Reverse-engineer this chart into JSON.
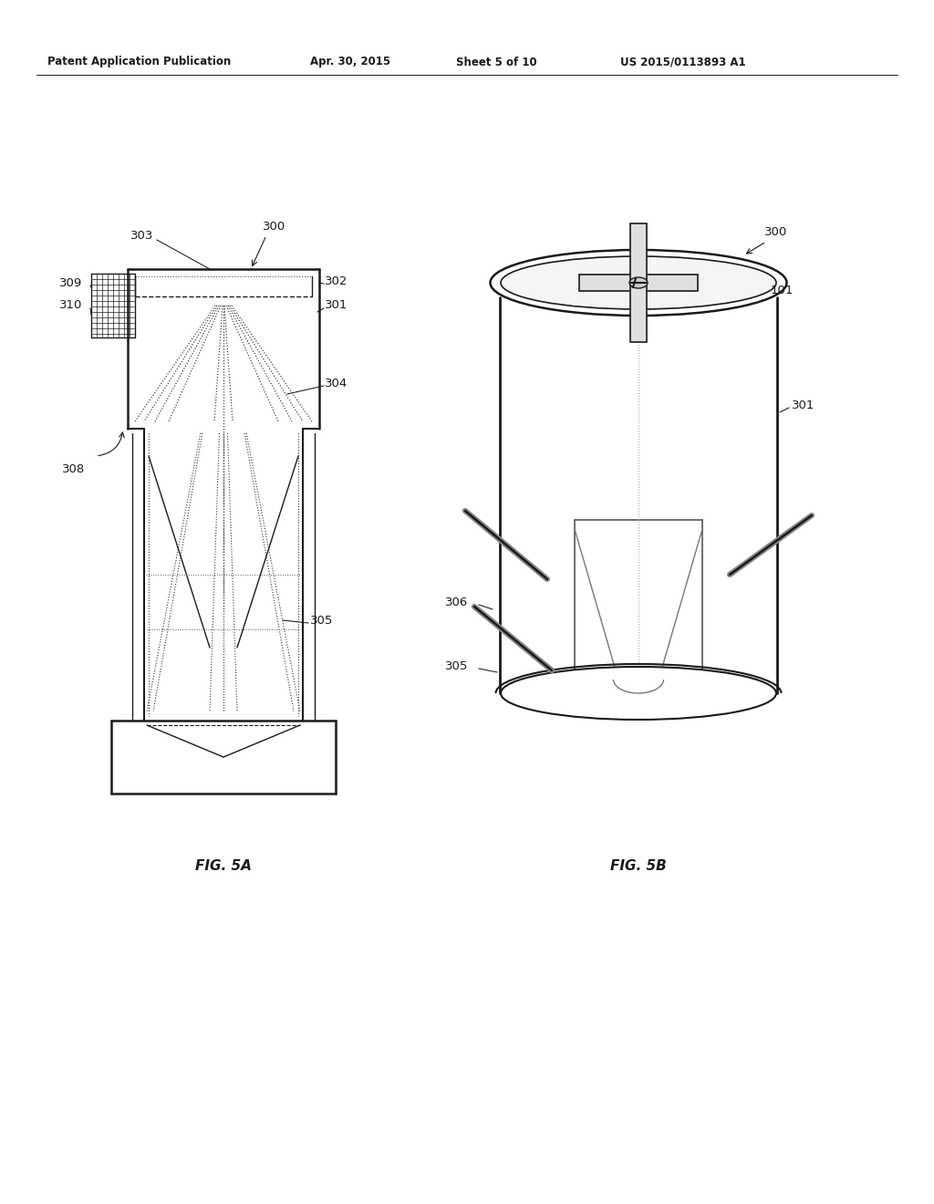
{
  "background_color": "#ffffff",
  "header_text": "Patent Application Publication",
  "header_date": "Apr. 30, 2015",
  "header_sheet": "Sheet 5 of 10",
  "header_patent": "US 2015/0113893 A1",
  "fig_label_5a": "FIG. 5A",
  "fig_label_5b": "FIG. 5B",
  "line_color": "#1a1a1a",
  "label_fontsize": 9.5
}
